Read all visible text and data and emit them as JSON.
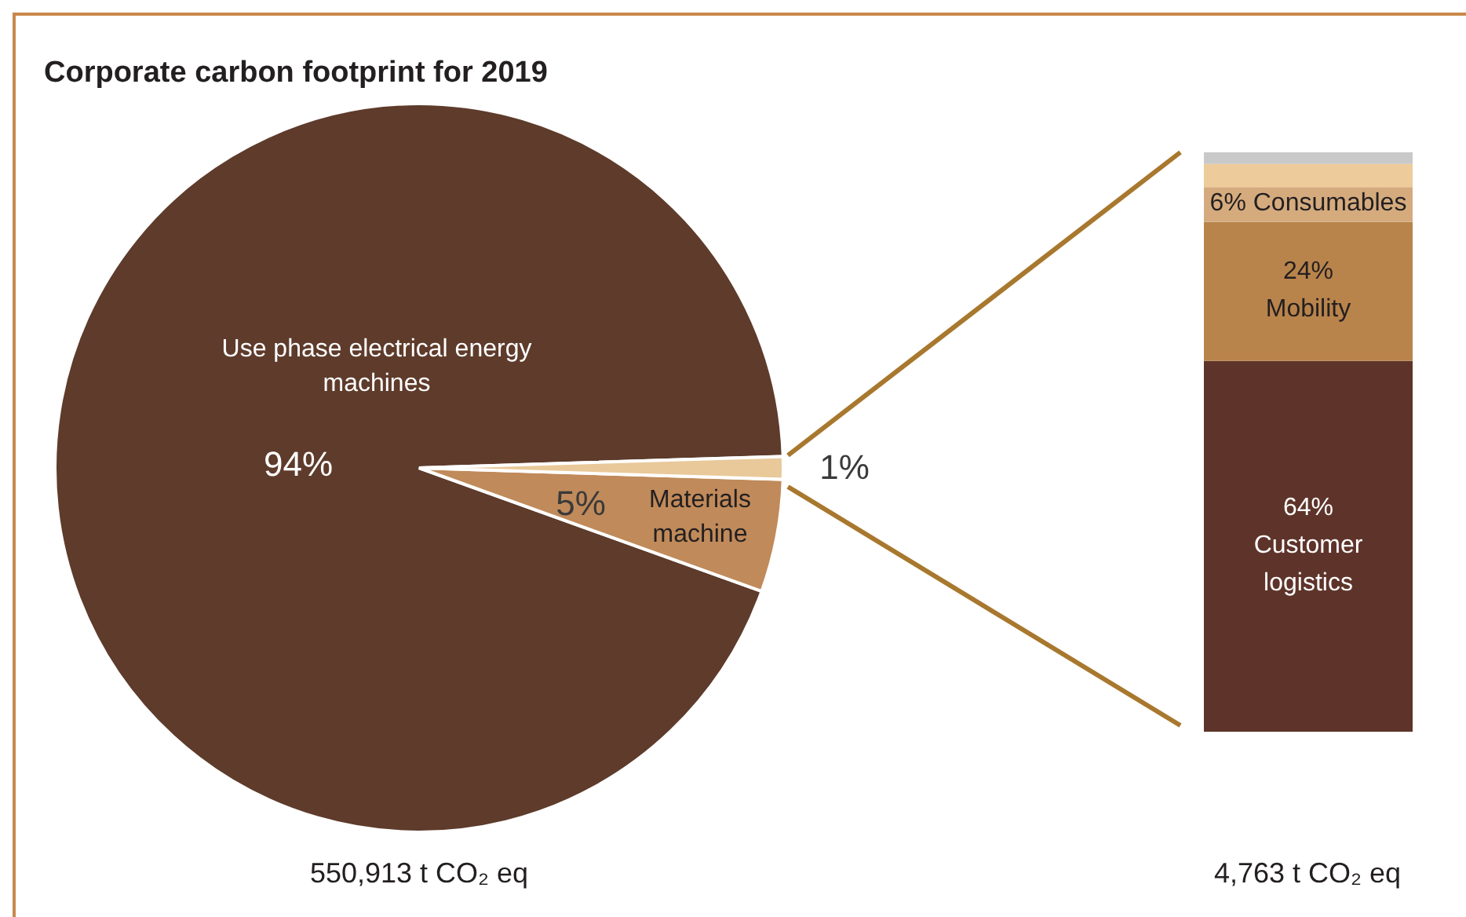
{
  "chart_data": [
    {
      "type": "pie",
      "title": "Corporate carbon footprint  for 2019",
      "categories": [
        "Use phase electrical energy machines",
        "Materials machine",
        null
      ],
      "values": [
        94,
        5,
        1
      ],
      "colors": [
        "#5e3b2b",
        "#c08a5a",
        "#e9c99a"
      ],
      "value_labels": [
        "94%",
        "5%",
        "1%"
      ],
      "annotations": [
        "550,913 t CO₂ eq"
      ]
    },
    {
      "type": "bar",
      "stacked": true,
      "categories": [
        null
      ],
      "ylim": [
        0,
        100
      ],
      "series": [
        {
          "name": "Customer logistics",
          "color": "#5e342a",
          "values": [
            64
          ],
          "value_labels": [
            "64%"
          ]
        },
        {
          "name": "Mobility",
          "color": "#b9844b",
          "values": [
            24
          ],
          "value_labels": [
            "24%"
          ]
        },
        {
          "name": "Consumables",
          "color": "#d5ab7e",
          "values": [
            6
          ],
          "value_labels": [
            "6%"
          ]
        },
        {
          "color": "#eecb9b",
          "values": [
            4
          ]
        },
        {
          "color": "#c9c9c9",
          "values": [
            2
          ]
        }
      ],
      "annotations": [
        "4,763 t CO₂ eq"
      ]
    }
  ]
}
